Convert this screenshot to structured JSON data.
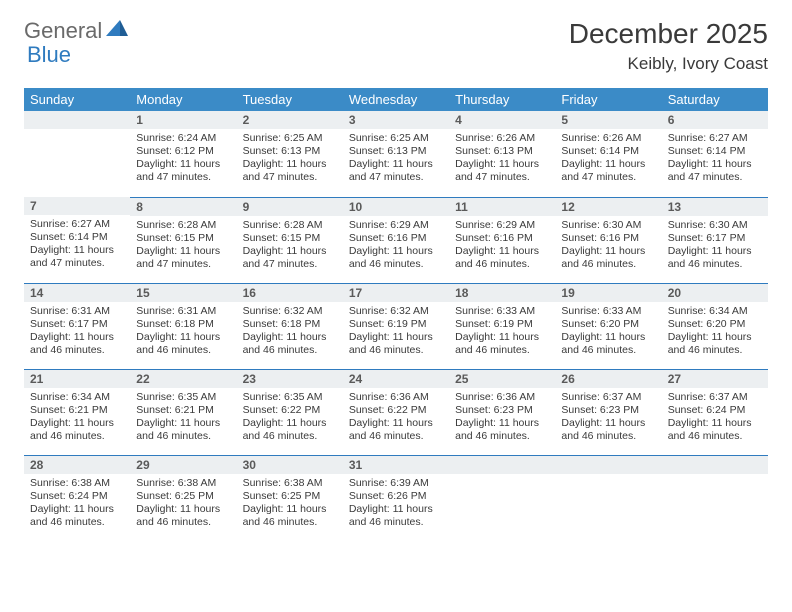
{
  "logo": {
    "text1": "General",
    "text2": "Blue"
  },
  "title": "December 2025",
  "subtitle": "Keibly, Ivory Coast",
  "colors": {
    "header_bg": "#3b8bc7",
    "header_fg": "#ffffff",
    "daynum_bg": "#eceff1",
    "cell_border": "#2f7bbf",
    "logo_gray": "#6a6a6a",
    "logo_blue": "#2f7bbf",
    "text": "#3a3a3a"
  },
  "dow": [
    "Sunday",
    "Monday",
    "Tuesday",
    "Wednesday",
    "Thursday",
    "Friday",
    "Saturday"
  ],
  "weeks": [
    [
      {
        "blank": true
      },
      {
        "n": "1",
        "sunrise": "6:24 AM",
        "sunset": "6:12 PM",
        "daylight": "11 hours and 47 minutes."
      },
      {
        "n": "2",
        "sunrise": "6:25 AM",
        "sunset": "6:13 PM",
        "daylight": "11 hours and 47 minutes."
      },
      {
        "n": "3",
        "sunrise": "6:25 AM",
        "sunset": "6:13 PM",
        "daylight": "11 hours and 47 minutes."
      },
      {
        "n": "4",
        "sunrise": "6:26 AM",
        "sunset": "6:13 PM",
        "daylight": "11 hours and 47 minutes."
      },
      {
        "n": "5",
        "sunrise": "6:26 AM",
        "sunset": "6:14 PM",
        "daylight": "11 hours and 47 minutes."
      },
      {
        "n": "6",
        "sunrise": "6:27 AM",
        "sunset": "6:14 PM",
        "daylight": "11 hours and 47 minutes."
      }
    ],
    [
      {
        "n": "7",
        "sunrise": "6:27 AM",
        "sunset": "6:14 PM",
        "daylight": "11 hours and 47 minutes."
      },
      {
        "n": "8",
        "sunrise": "6:28 AM",
        "sunset": "6:15 PM",
        "daylight": "11 hours and 47 minutes."
      },
      {
        "n": "9",
        "sunrise": "6:28 AM",
        "sunset": "6:15 PM",
        "daylight": "11 hours and 47 minutes."
      },
      {
        "n": "10",
        "sunrise": "6:29 AM",
        "sunset": "6:16 PM",
        "daylight": "11 hours and 46 minutes."
      },
      {
        "n": "11",
        "sunrise": "6:29 AM",
        "sunset": "6:16 PM",
        "daylight": "11 hours and 46 minutes."
      },
      {
        "n": "12",
        "sunrise": "6:30 AM",
        "sunset": "6:16 PM",
        "daylight": "11 hours and 46 minutes."
      },
      {
        "n": "13",
        "sunrise": "6:30 AM",
        "sunset": "6:17 PM",
        "daylight": "11 hours and 46 minutes."
      }
    ],
    [
      {
        "n": "14",
        "sunrise": "6:31 AM",
        "sunset": "6:17 PM",
        "daylight": "11 hours and 46 minutes."
      },
      {
        "n": "15",
        "sunrise": "6:31 AM",
        "sunset": "6:18 PM",
        "daylight": "11 hours and 46 minutes."
      },
      {
        "n": "16",
        "sunrise": "6:32 AM",
        "sunset": "6:18 PM",
        "daylight": "11 hours and 46 minutes."
      },
      {
        "n": "17",
        "sunrise": "6:32 AM",
        "sunset": "6:19 PM",
        "daylight": "11 hours and 46 minutes."
      },
      {
        "n": "18",
        "sunrise": "6:33 AM",
        "sunset": "6:19 PM",
        "daylight": "11 hours and 46 minutes."
      },
      {
        "n": "19",
        "sunrise": "6:33 AM",
        "sunset": "6:20 PM",
        "daylight": "11 hours and 46 minutes."
      },
      {
        "n": "20",
        "sunrise": "6:34 AM",
        "sunset": "6:20 PM",
        "daylight": "11 hours and 46 minutes."
      }
    ],
    [
      {
        "n": "21",
        "sunrise": "6:34 AM",
        "sunset": "6:21 PM",
        "daylight": "11 hours and 46 minutes."
      },
      {
        "n": "22",
        "sunrise": "6:35 AM",
        "sunset": "6:21 PM",
        "daylight": "11 hours and 46 minutes."
      },
      {
        "n": "23",
        "sunrise": "6:35 AM",
        "sunset": "6:22 PM",
        "daylight": "11 hours and 46 minutes."
      },
      {
        "n": "24",
        "sunrise": "6:36 AM",
        "sunset": "6:22 PM",
        "daylight": "11 hours and 46 minutes."
      },
      {
        "n": "25",
        "sunrise": "6:36 AM",
        "sunset": "6:23 PM",
        "daylight": "11 hours and 46 minutes."
      },
      {
        "n": "26",
        "sunrise": "6:37 AM",
        "sunset": "6:23 PM",
        "daylight": "11 hours and 46 minutes."
      },
      {
        "n": "27",
        "sunrise": "6:37 AM",
        "sunset": "6:24 PM",
        "daylight": "11 hours and 46 minutes."
      }
    ],
    [
      {
        "n": "28",
        "sunrise": "6:38 AM",
        "sunset": "6:24 PM",
        "daylight": "11 hours and 46 minutes."
      },
      {
        "n": "29",
        "sunrise": "6:38 AM",
        "sunset": "6:25 PM",
        "daylight": "11 hours and 46 minutes."
      },
      {
        "n": "30",
        "sunrise": "6:38 AM",
        "sunset": "6:25 PM",
        "daylight": "11 hours and 46 minutes."
      },
      {
        "n": "31",
        "sunrise": "6:39 AM",
        "sunset": "6:26 PM",
        "daylight": "11 hours and 46 minutes."
      },
      {
        "blank": true
      },
      {
        "blank": true
      },
      {
        "blank": true
      }
    ]
  ],
  "labels": {
    "sunrise": "Sunrise: ",
    "sunset": "Sunset: ",
    "daylight": "Daylight: "
  }
}
